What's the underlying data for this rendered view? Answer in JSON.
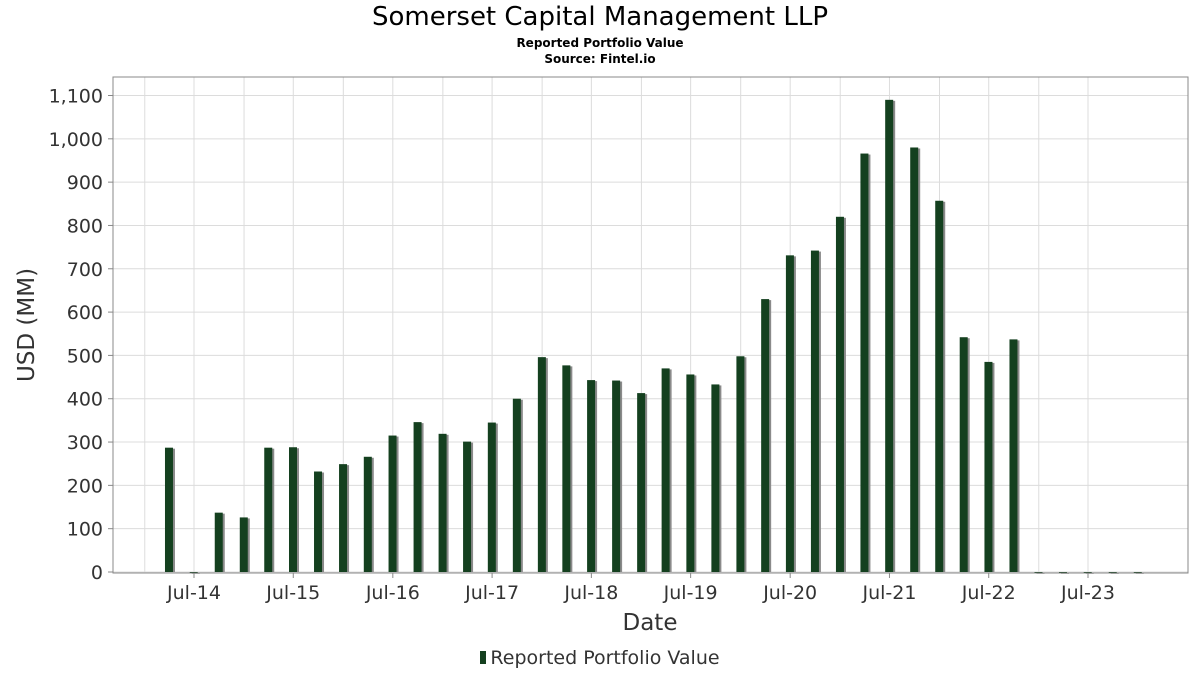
{
  "chart_data": {
    "type": "bar",
    "title": "Somerset Capital Management LLP",
    "subtitle": "Reported Portfolio Value",
    "source": "Source: Fintel.io",
    "xlabel": "Date",
    "ylabel": "USD (MM)",
    "ylim": [
      0,
      1140
    ],
    "yticks": [
      0,
      100,
      200,
      300,
      400,
      500,
      600,
      700,
      800,
      900,
      1000,
      1100
    ],
    "ytick_labels": [
      "0",
      "100",
      "200",
      "300",
      "400",
      "500",
      "600",
      "700",
      "800",
      "900",
      "1,000",
      "1,100"
    ],
    "xticks": [
      "Jul-14",
      "Jul-15",
      "Jul-16",
      "Jul-17",
      "Jul-18",
      "Jul-19",
      "Jul-20",
      "Jul-21",
      "Jul-22",
      "Jul-23"
    ],
    "grid": true,
    "legend_position": "bottom",
    "bar_color": "#14401f",
    "shadow_color": "#8a8a8a",
    "series": [
      {
        "name": "Reported Portfolio Value",
        "dates": [
          "2014-03-31",
          "2014-06-30",
          "2014-09-30",
          "2014-12-31",
          "2015-03-31",
          "2015-06-30",
          "2015-09-30",
          "2015-12-31",
          "2016-03-31",
          "2016-06-30",
          "2016-09-30",
          "2016-12-31",
          "2017-03-31",
          "2017-06-30",
          "2017-09-30",
          "2017-12-31",
          "2018-03-31",
          "2018-06-30",
          "2018-09-30",
          "2018-12-31",
          "2019-03-31",
          "2019-06-30",
          "2019-09-30",
          "2019-12-31",
          "2020-03-31",
          "2020-06-30",
          "2020-09-30",
          "2020-12-31",
          "2021-03-31",
          "2021-06-30",
          "2021-09-30",
          "2021-12-31",
          "2022-03-31",
          "2022-06-30",
          "2022-09-30",
          "2022-12-31",
          "2023-03-31",
          "2023-06-30",
          "2023-09-30",
          "2023-12-31"
        ],
        "values": [
          287,
          0,
          137,
          126,
          287,
          288,
          232,
          249,
          266,
          315,
          346,
          319,
          301,
          345,
          400,
          496,
          477,
          443,
          442,
          413,
          470,
          456,
          433,
          498,
          630,
          731,
          742,
          820,
          966,
          1090,
          980,
          857,
          542,
          485,
          537,
          0,
          0,
          0,
          0,
          0
        ]
      }
    ]
  }
}
